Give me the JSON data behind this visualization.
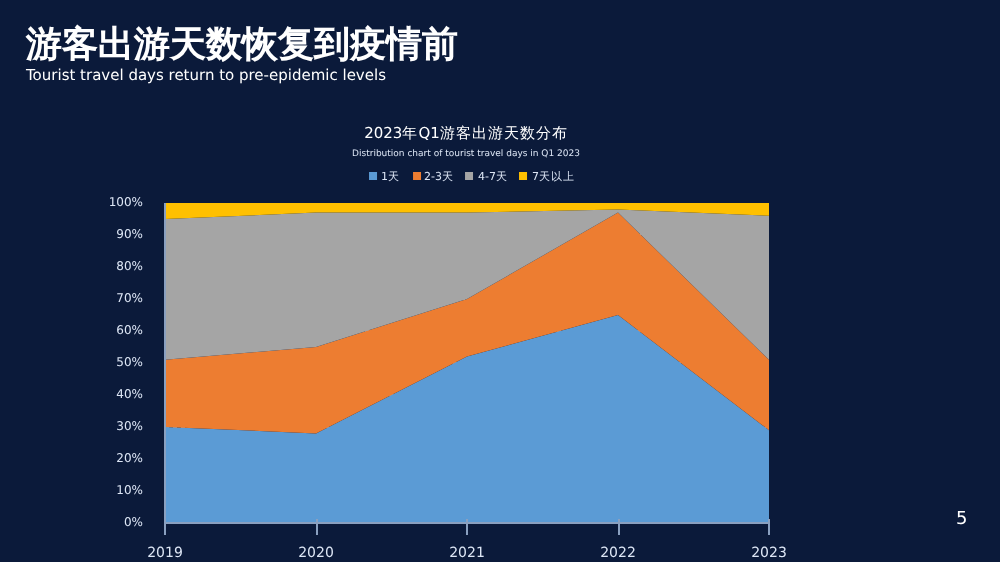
{
  "chart_data": {
    "type": "area",
    "stacked": true,
    "title": "2023年Q1游客出游天数分布",
    "subtitle": "Distribution chart of tourist travel days in Q1 2023",
    "annotations": [
      "游客出游天数恢复到疫情前",
      "Tourist travel days return to pre-epidemic levels",
      "5"
    ],
    "x": [
      2019,
      2020,
      2021,
      2022,
      2023
    ],
    "series": [
      {
        "name": "1天",
        "color": "#5b9bd5",
        "values": [
          30,
          28,
          52,
          65,
          29
        ]
      },
      {
        "name": "2-3天",
        "color": "#ed7d31",
        "values": [
          21,
          27,
          18,
          32,
          22
        ]
      },
      {
        "name": "4-7天",
        "color": "#a5a5a5",
        "values": [
          44,
          42,
          27,
          1,
          45
        ]
      },
      {
        "name": "7天以上",
        "color": "#ffc000",
        "values": [
          5,
          3,
          3,
          2,
          4
        ]
      }
    ],
    "xlim": [
      2019,
      2023
    ],
    "xticks": [
      2019,
      2020,
      2021,
      2022,
      2023
    ],
    "ylim": [
      0,
      100
    ],
    "yticks": [
      {
        "value": 0,
        "label": "0%"
      },
      {
        "value": 10,
        "label": "10%"
      },
      {
        "value": 20,
        "label": "20%"
      },
      {
        "value": 30,
        "label": "30%"
      },
      {
        "value": 40,
        "label": "40%"
      },
      {
        "value": 50,
        "label": "50%"
      },
      {
        "value": 60,
        "label": "60%"
      },
      {
        "value": 70,
        "label": "70%"
      },
      {
        "value": 80,
        "label": "80%"
      },
      {
        "value": 90,
        "label": "90%"
      },
      {
        "value": 100,
        "label": "100%"
      }
    ],
    "grid": "y",
    "legend": "top"
  }
}
